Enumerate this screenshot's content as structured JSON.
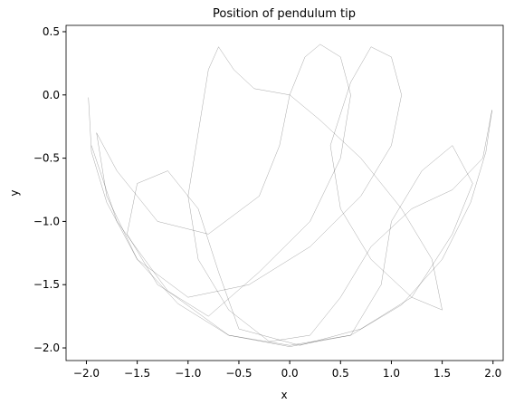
{
  "chart_data": {
    "type": "line",
    "title": "Position of pendulum tip",
    "x_label": "x",
    "y_label": "y",
    "color": "#000000",
    "xlim": [
      -2.2,
      2.1
    ],
    "ylim": [
      -2.1,
      0.55
    ],
    "xticks": [
      {
        "value": -2.0,
        "label": "−2.0"
      },
      {
        "value": -1.5,
        "label": "−1.5"
      },
      {
        "value": -1.0,
        "label": "−1.0"
      },
      {
        "value": -0.5,
        "label": "−0.5"
      },
      {
        "value": 0,
        "label": "0.0"
      },
      0.5,
      {
        "value": 1,
        "label": "1.0"
      },
      1.5,
      {
        "value": 2,
        "label": "2.0"
      }
    ],
    "yticks": [
      {
        "value": -2.0,
        "label": "−2.0"
      },
      {
        "value": -1.5,
        "label": "−1.5"
      },
      {
        "value": -1.0,
        "label": "−1.0"
      },
      {
        "value": -0.5,
        "label": "−0.5"
      },
      {
        "value": 0,
        "label": "0.0"
      },
      0.5
    ],
    "x": [
      -1.98,
      -1.95,
      -1.8,
      -1.5,
      -1.1,
      -0.6,
      0,
      0.6,
      1.1,
      1.5,
      1.78,
      1.93,
      1.99,
      1.9,
      1.6,
      1.2,
      0.8,
      0.5,
      0.2,
      -0.2,
      -0.6,
      -0.9,
      -1.0,
      -0.9,
      -0.8,
      -0.7,
      -0.55,
      -0.35,
      0,
      0.3,
      0.7,
      1.1,
      1.4,
      1.5,
      1.2,
      0.8,
      0.5,
      0.4,
      0.6,
      0.8,
      1.0,
      1.1,
      1.0,
      0.7,
      0.2,
      -0.4,
      -1.0,
      -1.5,
      -1.8,
      -1.9,
      -1.7,
      -1.3,
      -0.8,
      -0.3,
      -0.1,
      0,
      0.15,
      0.3,
      0.5,
      0.6,
      0.5,
      0.2,
      -0.3,
      -0.8,
      -1.3,
      -1.6,
      -1.5,
      -1.2,
      -0.9,
      -0.7,
      -0.5,
      0.1,
      0.7,
      1.2,
      1.6,
      1.8,
      1.6,
      1.3,
      1.0,
      0.9,
      0.6,
      0,
      -0.6,
      -1.2,
      -1.7,
      -1.95
    ],
    "y": [
      -0.02,
      -0.45,
      -0.85,
      -1.3,
      -1.65,
      -1.9,
      -1.99,
      -1.9,
      -1.66,
      -1.3,
      -0.85,
      -0.45,
      -0.12,
      -0.5,
      -0.75,
      -0.9,
      -1.2,
      -1.6,
      -1.9,
      -1.95,
      -1.7,
      -1.3,
      -0.8,
      -0.3,
      0.2,
      0.38,
      0.2,
      0.05,
      0,
      -0.2,
      -0.5,
      -0.9,
      -1.3,
      -1.7,
      -1.6,
      -1.3,
      -0.9,
      -0.4,
      0.1,
      0.38,
      0.3,
      0,
      -0.4,
      -0.8,
      -1.2,
      -1.5,
      -1.6,
      -1.3,
      -0.8,
      -0.3,
      -0.6,
      -1.0,
      -1.1,
      -0.8,
      -0.4,
      0,
      0.3,
      0.4,
      0.3,
      0,
      -0.5,
      -1.0,
      -1.4,
      -1.75,
      -1.5,
      -1.1,
      -0.7,
      -0.6,
      -0.9,
      -1.4,
      -1.85,
      -1.98,
      -1.85,
      -1.6,
      -1.1,
      -0.7,
      -0.4,
      -0.6,
      -1.0,
      -1.5,
      -1.9,
      -1.98,
      -1.9,
      -1.55,
      -1.0,
      -0.4
    ]
  }
}
